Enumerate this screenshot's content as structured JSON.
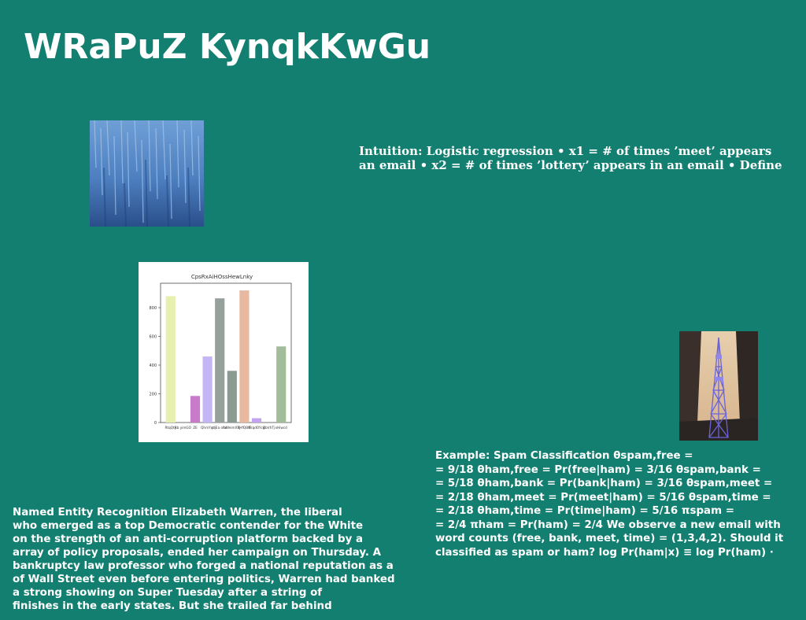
{
  "page": {
    "title": "WRaPuZ KynqkKwGu",
    "background": "#137f71"
  },
  "intuition": {
    "lines": [
      "Intuition: Logistic regression • x1 = # of times ’meet’ appears",
      "an email • x2 = # of times ’lottery’ appears in an email • Define"
    ]
  },
  "example": {
    "lines": [
      "Example: Spam Classification θspam,free =",
      "= 9/18 θham,free = Pr(free|ham) = 3/16 θspam,bank =",
      "= 5/18 θham,bank = Pr(bank|ham) = 3/16 θspam,meet =",
      "= 2/18 θham,meet = Pr(meet|ham) = 5/16 θspam,time =",
      "= 2/18 θham,time = Pr(time|ham) = 5/16 πspam =",
      "= 2/4 πham = Pr(ham) = 2/4 We observe a new email with",
      "word counts (free, bank, meet, time) = (1,3,4,2). Should it",
      "classified as spam or ham? log Pr(ham|x) ≡ log Pr(ham) ·"
    ]
  },
  "ner": {
    "lines": [
      "Named Entity Recognition Elizabeth Warren, the liberal",
      "who emerged as a top Democratic contender for the White",
      "on the strength of an anti-corruption platform backed by a",
      "array of policy proposals, ended her campaign on Thursday. A",
      "bankruptcy law professor who forged a national reputation as a",
      "of Wall Street even before entering politics, Warren had banked",
      "a strong showing on Super Tuesday after a string of",
      "finishes in the early states. But she trailed far behind"
    ]
  },
  "chart_data": {
    "type": "bar",
    "title": "CpsRxAiHOssHewLnky",
    "categories": [
      "RtqQty",
      "Rb yimGO",
      "ZE",
      "QhmYqt",
      "djEa ohe",
      "bWeimXYJ",
      "SHfQBtF",
      "RsqdOYcg",
      "RbVhTj",
      "xHiwcd"
    ],
    "values": [
      880,
      0,
      185,
      460,
      865,
      360,
      920,
      30,
      0,
      530
    ],
    "colors": [
      "#e8f0b0",
      "#ffffff",
      "#c97ac9",
      "#c4b5f5",
      "#97a19c",
      "#8a9a91",
      "#e9b8a0",
      "#c4a3f0",
      "#ffffff",
      "#a3bd9b"
    ],
    "yticks": [
      0,
      200,
      400,
      600,
      800
    ],
    "ylim": [
      0,
      970
    ],
    "xlabel": "",
    "ylabel": "",
    "grid": false
  }
}
